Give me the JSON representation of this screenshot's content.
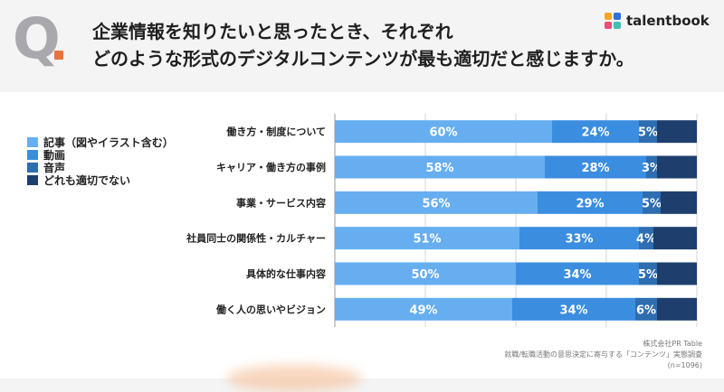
{
  "header": {
    "q_letter": "Q",
    "title_lines": [
      "企業情報を知りたいと思ったとき、それぞれ",
      "どのような形式のデジタルコンテンツが最も適切だと感じますか。"
    ]
  },
  "brand": {
    "name": "talentbook",
    "colors": [
      "#f5a623",
      "#2f6fde",
      "#e94e77",
      "#3ec3b0"
    ]
  },
  "legend": [
    {
      "label": "記事（図やイラスト含む）",
      "color": "#66aef0"
    },
    {
      "label": "動画",
      "color": "#3b8de0"
    },
    {
      "label": "音声",
      "color": "#2d6db0"
    },
    {
      "label": "どれも適切でない",
      "color": "#1e3f6e"
    }
  ],
  "source": [
    "株式会社PR Table",
    "就職/転職活動の意思決定に寄与する「コンテンツ」実態調査",
    "(n=1096)"
  ],
  "chart_data": {
    "type": "bar",
    "orientation": "horizontal",
    "stacked": true,
    "categories": [
      "働き方・制度について",
      "キャリア・働き方の事例",
      "事業・サービス内容",
      "社員同士の関係性・カルチャー",
      "具体的な仕事内容",
      "働く人の思いやビジョン"
    ],
    "series": [
      {
        "name": "記事（図やイラスト含む）",
        "color": "#66aef0",
        "values": [
          60,
          58,
          56,
          51,
          50,
          49
        ]
      },
      {
        "name": "動画",
        "color": "#3b8de0",
        "values": [
          24,
          28,
          29,
          33,
          34,
          34
        ]
      },
      {
        "name": "音声",
        "color": "#2d6db0",
        "values": [
          5,
          3,
          5,
          4,
          5,
          6
        ]
      },
      {
        "name": "どれも適切でない",
        "color": "#1e3f6e",
        "values": [
          11,
          11,
          10,
          12,
          11,
          11
        ]
      }
    ],
    "value_labels_shown_for_series": 3,
    "value_suffix": "%",
    "xlim": [
      0,
      100
    ],
    "grid": true,
    "legend_position": "left"
  }
}
